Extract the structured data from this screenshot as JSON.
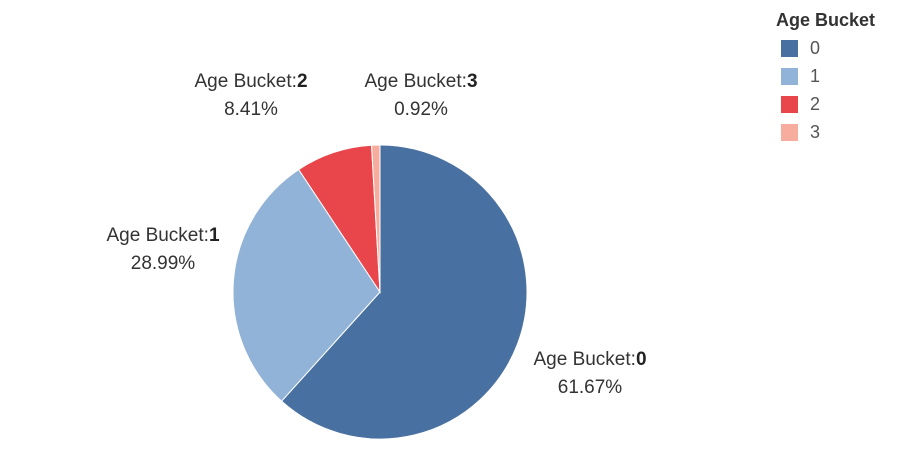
{
  "chart_data": {
    "type": "pie",
    "legend": {
      "title": "Age Bucket",
      "placement": "top-right"
    },
    "slices": [
      {
        "category": "0",
        "label_prefix": "Age Bucket:",
        "value": 61.67,
        "value_label": "61.67%",
        "color": "#4870a0"
      },
      {
        "category": "1",
        "label_prefix": "Age Bucket:",
        "value": 28.99,
        "value_label": "28.99%",
        "color": "#92b3d8"
      },
      {
        "category": "2",
        "label_prefix": "Age Bucket:",
        "value": 8.41,
        "value_label": "8.41%",
        "color": "#e8464a"
      },
      {
        "category": "3",
        "label_prefix": "Age Bucket:",
        "value": 0.92,
        "value_label": "0.92%",
        "color": "#f7ad9e"
      }
    ]
  }
}
